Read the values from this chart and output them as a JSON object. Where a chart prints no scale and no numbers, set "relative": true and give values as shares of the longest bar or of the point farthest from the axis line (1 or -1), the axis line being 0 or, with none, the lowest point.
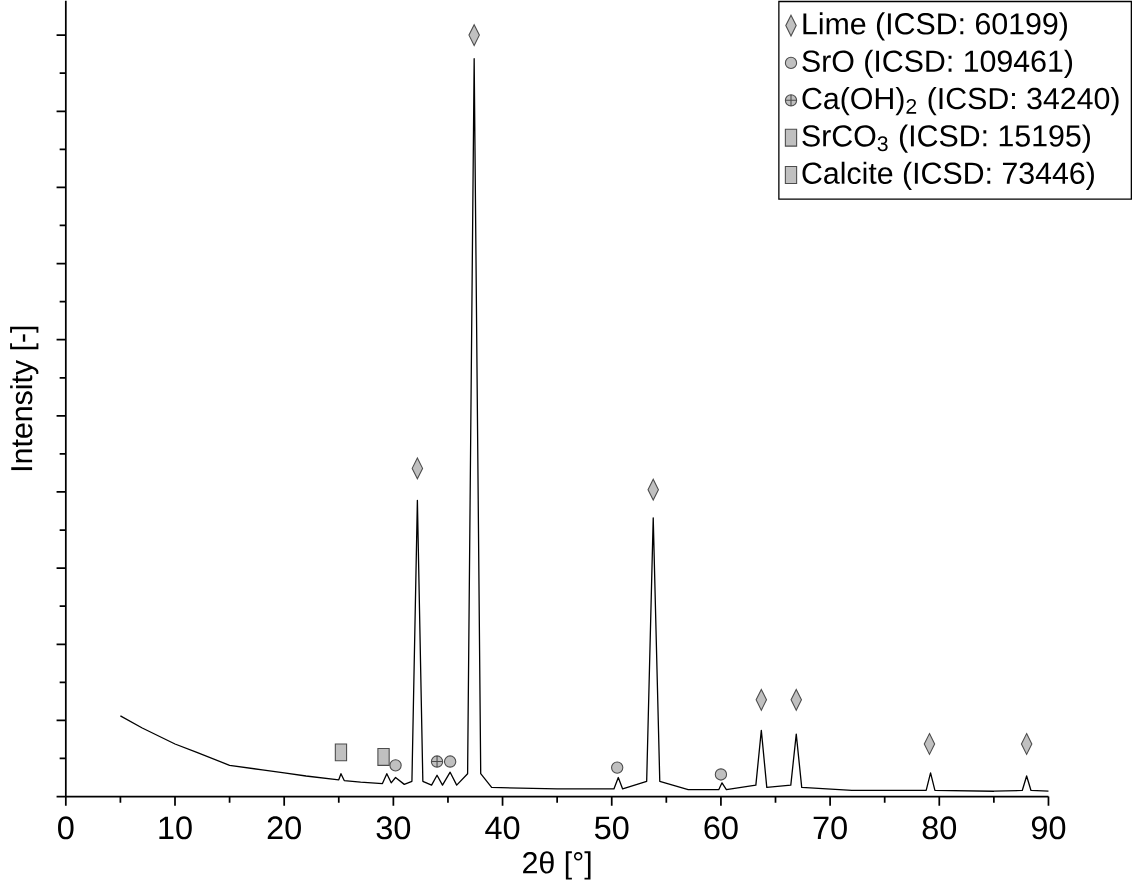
{
  "chart_data": {
    "type": "line",
    "relative": true,
    "xlabel": "2θ [°]",
    "ylabel": "Intensity [-]",
    "xlim": [
      0,
      90
    ],
    "xticks": [
      0,
      10,
      20,
      30,
      40,
      50,
      60,
      70,
      80,
      90
    ],
    "legend": "top right",
    "series": [
      {
        "color": "#000000",
        "marker": "none",
        "line_style": "solid",
        "x": [
          5,
          7,
          10,
          12,
          15,
          18,
          20,
          22,
          25,
          25.2,
          25.5,
          27,
          29,
          29.4,
          29.8,
          30.2,
          31,
          31.7,
          32.2,
          32.7,
          33.5,
          34.0,
          34.5,
          35.2,
          35.8,
          36.8,
          37.4,
          38.0,
          39,
          42,
          45,
          48,
          50.2,
          50.6,
          51,
          53.2,
          53.8,
          54.4,
          57,
          59.8,
          60.1,
          60.5,
          63.2,
          63.7,
          64.2,
          66.4,
          66.9,
          67.4,
          72,
          78.8,
          79.2,
          79.6,
          85,
          87.6,
          88.0,
          88.4,
          90
        ],
        "values": [
          0.106,
          0.09,
          0.069,
          0.058,
          0.041,
          0.035,
          0.031,
          0.027,
          0.022,
          0.03,
          0.021,
          0.019,
          0.017,
          0.03,
          0.018,
          0.025,
          0.016,
          0.02,
          0.389,
          0.02,
          0.015,
          0.028,
          0.015,
          0.032,
          0.015,
          0.03,
          0.969,
          0.03,
          0.012,
          0.011,
          0.01,
          0.01,
          0.01,
          0.025,
          0.01,
          0.02,
          0.366,
          0.02,
          0.009,
          0.009,
          0.018,
          0.009,
          0.015,
          0.087,
          0.012,
          0.015,
          0.082,
          0.012,
          0.008,
          0.008,
          0.031,
          0.008,
          0.007,
          0.008,
          0.027,
          0.008,
          0.007
        ]
      },
      {
        "type": "scatter",
        "name": "Lime (ICSD: 60199)",
        "color": "#c0c0c0",
        "marker": "diamond",
        "x": [
          32.2,
          37.4,
          53.8,
          63.7,
          66.9,
          79.1,
          88.0
        ],
        "values": [
          0.431,
          1.0,
          0.403,
          0.127,
          0.127,
          0.069,
          0.069
        ]
      },
      {
        "type": "scatter",
        "name": "SrO (ICSD: 109461)",
        "color": "#c0c0c0",
        "marker": "circle",
        "x": [
          30.2,
          35.2,
          50.5,
          60.0
        ],
        "values": [
          0.041,
          0.046,
          0.038,
          0.029
        ]
      },
      {
        "type": "scatter",
        "name": "Ca(OH)$_{2}$ (ICSD: 34240)",
        "color": "#c0c0c0",
        "marker": "cross",
        "x": [
          34.0
        ],
        "values": [
          0.046
        ]
      },
      {
        "type": "scatter",
        "name": "SrCO$_{3}$ (ICSD: 15195)",
        "color": "#c0c0c0",
        "marker": "square",
        "x": [
          25.2
        ],
        "values": [
          0.058
        ]
      },
      {
        "type": "scatter",
        "name": "Calcite (ICSD: 73446)",
        "color": "#c0c0c0",
        "marker": "square",
        "x": [
          29.1
        ],
        "values": [
          0.052
        ]
      }
    ]
  }
}
